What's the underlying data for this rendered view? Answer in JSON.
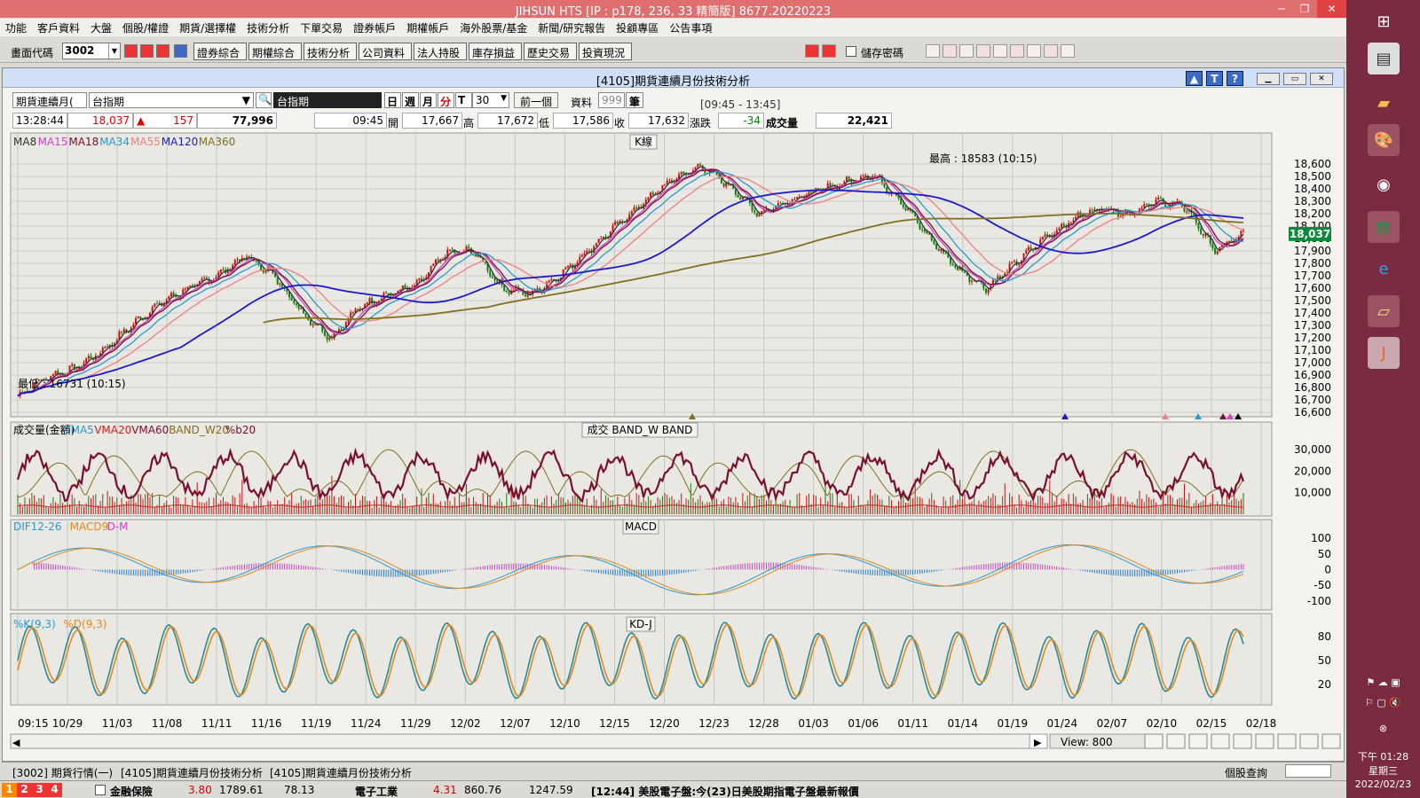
{
  "window_title": "JIHSUN HTS      [IP : p178, 236, 33 精簡版] 8677.20220223",
  "menu": [
    "功能",
    "客戶資料",
    "大盤",
    "個股/權證",
    "期貨/選擇權",
    "技術分析",
    "下單交易",
    "證券帳戶",
    "期權帳戶",
    "海外股票/基金",
    "新聞/研究報告",
    "投顧專區",
    "公告事項"
  ],
  "toolbar": {
    "code_label": "畫面代碼",
    "code_value": "3002",
    "buttons": [
      "證券綜合",
      "期權綜合",
      "技術分析",
      "公司資料",
      "法人持股",
      "庫存損益",
      "歷史交易",
      "投資現況"
    ],
    "save_pwd": "儲存密碼"
  },
  "subwin": {
    "title": "[4105]期貨連續月份技術分析",
    "mode": "期貨連續月(",
    "symbol_in": "台指期",
    "symbol": "台指期",
    "periods": [
      "日",
      "週",
      "月",
      "分",
      "T"
    ],
    "interval": "30",
    "prev_btn": "前一個",
    "data_label": "資料",
    "data_count": "999",
    "unit": "筆",
    "time_range": "[09:45 - 13:45]",
    "quote": {
      "time": "13:28:44",
      "price": "18,037",
      "change": "157",
      "volume": "77,996",
      "bar_time": "09:45",
      "open_lbl": "開",
      "open": "17,667",
      "high_lbl": "高",
      "high": "17,672",
      "low_lbl": "低",
      "low": "17,586",
      "close_lbl": "收",
      "close": "17,632",
      "chg_lbl": "漲跌",
      "chg": "-34",
      "vol_lbl": "成交量",
      "vol": "22,421"
    }
  },
  "main_legend": [
    {
      "t": "MA8",
      "c": "#333333"
    },
    {
      "t": "MA15",
      "c": "#cc44cc"
    },
    {
      "t": "MA18",
      "c": "#7a1030"
    },
    {
      "t": "MA34",
      "c": "#2a9ad0"
    },
    {
      "t": "MA55",
      "c": "#f08080"
    },
    {
      "t": "MA120",
      "c": "#1a1acc"
    },
    {
      "t": "MA360",
      "c": "#807020"
    }
  ],
  "main_title": "K線",
  "high_note": "最高 : 18583 (10:15)",
  "low_note": "最低 : 16731 (10:15)",
  "price_axis": [
    "18,600",
    "18,500",
    "18,400",
    "18,300",
    "18,200",
    "18,100",
    "18,000",
    "17,900",
    "17,800",
    "17,700",
    "17,600",
    "17,500",
    "17,400",
    "17,300",
    "17,200",
    "17,100",
    "17,000",
    "16,900",
    "16,800",
    "16,700",
    "16,600"
  ],
  "last_price": "18,037",
  "vol_legend": [
    {
      "t": "成交量(金額)",
      "c": "#000000"
    },
    {
      "t": "VMA5",
      "c": "#2a9ad0"
    },
    {
      "t": "VMA20",
      "c": "#d02020"
    },
    {
      "t": "VMA60",
      "c": "#7a1030"
    },
    {
      "t": "BAND_W20",
      "c": "#807020"
    },
    {
      "t": "%b20",
      "c": "#7a1030"
    }
  ],
  "vol_title": "成交   BAND_W   BAND",
  "vol_axis": [
    "30,000",
    "20,000",
    "10,000"
  ],
  "macd_legend": [
    {
      "t": "DIF12-26",
      "c": "#2a9ad0"
    },
    {
      "t": "MACD9",
      "c": "#e08a20"
    },
    {
      "t": "D-M",
      "c": "#cc44cc"
    }
  ],
  "macd_title": "MACD",
  "macd_axis": [
    "100",
    "50",
    "0",
    "-50",
    "-100"
  ],
  "kd_legend": [
    {
      "t": "%K(9,3)",
      "c": "#2a9ad0"
    },
    {
      "t": "%D(9,3)",
      "c": "#e08a20"
    }
  ],
  "kd_title": "KD-J",
  "kd_axis": [
    "80",
    "50",
    "20"
  ],
  "x_axis": [
    "09:15",
    "10/29",
    "11/03",
    "11/08",
    "11/11",
    "11/16",
    "11/19",
    "11/24",
    "11/29",
    "12/02",
    "12/07",
    "12/10",
    "12/15",
    "12/20",
    "12/23",
    "12/28",
    "01/03",
    "01/06",
    "01/11",
    "01/14",
    "01/19",
    "01/24",
    "02/07",
    "02/10",
    "02/15",
    "02/18"
  ],
  "view": "View: 800",
  "tabs": [
    "[3002] 期貨行情(一)",
    "[4105]期貨連續月份技術分析",
    "[4105]期貨連續月份技術分析"
  ],
  "stock_query": "個股查詢",
  "ticker": {
    "items": [
      {
        "name": "金融保險",
        "chg": "3.80",
        "v1": "1789.61",
        "v2": "78.13"
      },
      {
        "name": "電子工業",
        "chg": "4.31",
        "v1": "860.76",
        "v2": "1247.59"
      }
    ],
    "news": "[12:44] 美股電子盤:今(23)日美股期指電子盤最新報價"
  },
  "clock": {
    "time": "下午 01:28",
    "weekday": "星期三",
    "date": "2022/02/23"
  },
  "chart_data": {
    "type": "candlestick",
    "title": "K線",
    "price_range": [
      16600,
      18600
    ],
    "high": 18583,
    "low": 16731,
    "last": 18037,
    "trend": [
      16731,
      16880,
      16950,
      17100,
      17300,
      17480,
      17600,
      17700,
      17860,
      17700,
      17400,
      17200,
      17450,
      17550,
      17620,
      17880,
      17900,
      17600,
      17550,
      17700,
      17900,
      18100,
      18300,
      18480,
      18583,
      18420,
      18200,
      18300,
      18380,
      18450,
      18520,
      18300,
      18000,
      17750,
      17600,
      17800,
      18000,
      18150,
      18250,
      18200,
      18300,
      18250,
      17900,
      18037
    ],
    "ma_values_end": {
      "MA120": 18100,
      "MA360": 18150
    }
  }
}
